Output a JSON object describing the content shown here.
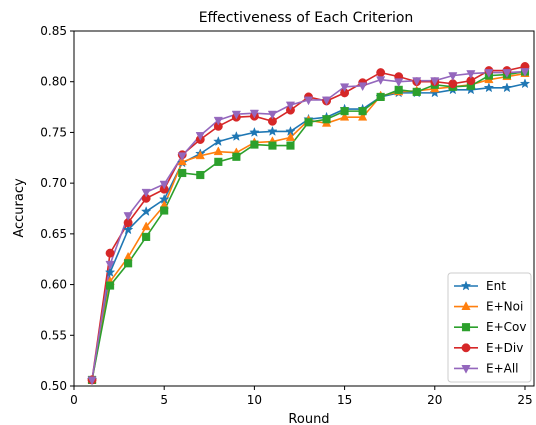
{
  "chart_data": {
    "type": "line",
    "title": "Effectiveness of Each Criterion",
    "xlabel": "Round",
    "ylabel": "Accuracy",
    "xlim": [
      0,
      25.5
    ],
    "ylim": [
      0.5,
      0.85
    ],
    "xticks": [
      0,
      5,
      10,
      15,
      20,
      25
    ],
    "yticks": [
      0.5,
      0.55,
      0.6,
      0.65,
      0.7,
      0.75,
      0.8,
      0.85
    ],
    "grid": false,
    "legend_position": "lower-right",
    "x": [
      1,
      2,
      3,
      4,
      5,
      6,
      7,
      8,
      9,
      10,
      11,
      12,
      13,
      14,
      15,
      16,
      17,
      18,
      19,
      20,
      21,
      22,
      23,
      24,
      25
    ],
    "series": [
      {
        "name": "Ent",
        "color": "#1f77b4",
        "marker": "star",
        "values": [
          0.506,
          0.612,
          0.654,
          0.672,
          0.684,
          0.72,
          0.729,
          0.741,
          0.746,
          0.75,
          0.751,
          0.751,
          0.763,
          0.765,
          0.773,
          0.773,
          0.785,
          0.789,
          0.789,
          0.789,
          0.792,
          0.792,
          0.794,
          0.794,
          0.798
        ]
      },
      {
        "name": "E+Noi",
        "color": "#ff7f0e",
        "marker": "triangle-up",
        "values": [
          0.506,
          0.603,
          0.627,
          0.657,
          0.678,
          0.721,
          0.727,
          0.731,
          0.73,
          0.74,
          0.741,
          0.745,
          0.762,
          0.759,
          0.765,
          0.765,
          0.786,
          0.79,
          0.791,
          0.793,
          0.795,
          0.797,
          0.802,
          0.805,
          0.808
        ]
      },
      {
        "name": "E+Cov",
        "color": "#2ca02c",
        "marker": "square",
        "values": [
          0.506,
          0.599,
          0.621,
          0.647,
          0.673,
          0.71,
          0.708,
          0.721,
          0.726,
          0.738,
          0.737,
          0.737,
          0.76,
          0.763,
          0.771,
          0.771,
          0.785,
          0.792,
          0.79,
          0.797,
          0.795,
          0.796,
          0.806,
          0.807,
          0.81
        ]
      },
      {
        "name": "E+Div",
        "color": "#d62728",
        "marker": "circle",
        "values": [
          0.506,
          0.631,
          0.661,
          0.685,
          0.694,
          0.728,
          0.743,
          0.756,
          0.765,
          0.766,
          0.761,
          0.772,
          0.785,
          0.781,
          0.789,
          0.799,
          0.809,
          0.805,
          0.8,
          0.8,
          0.798,
          0.801,
          0.811,
          0.811,
          0.815
        ]
      },
      {
        "name": "E+All",
        "color": "#9467bd",
        "marker": "triangle-down",
        "values": [
          0.506,
          0.62,
          0.668,
          0.691,
          0.699,
          0.727,
          0.747,
          0.762,
          0.768,
          0.769,
          0.768,
          0.777,
          0.782,
          0.782,
          0.795,
          0.796,
          0.802,
          0.8,
          0.801,
          0.801,
          0.806,
          0.808,
          0.809,
          0.809,
          0.81
        ]
      }
    ]
  }
}
